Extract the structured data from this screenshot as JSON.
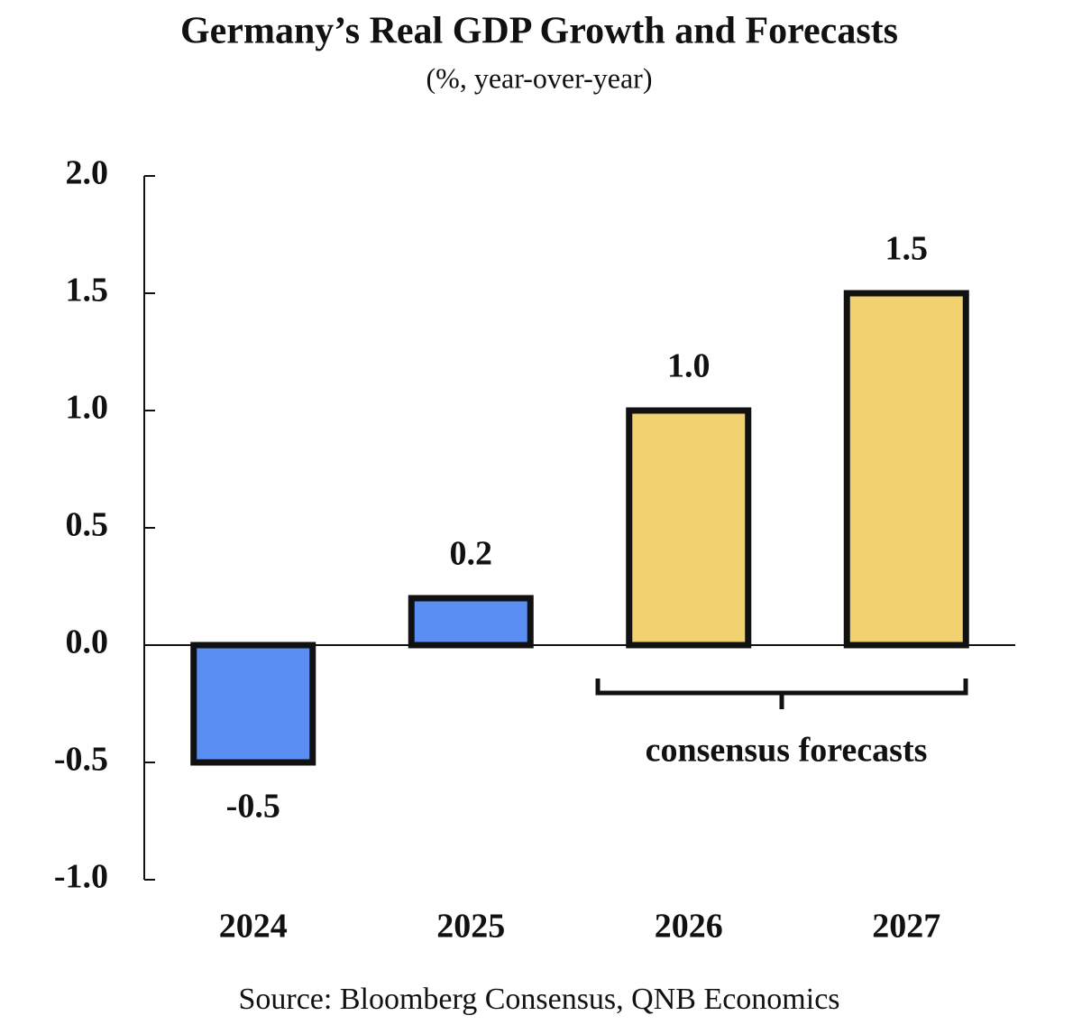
{
  "chart_data": {
    "type": "bar",
    "title": "Germany’s Real GDP Growth and Forecasts",
    "subtitle": "(%, year-over-year)",
    "categories": [
      "2024",
      "2025",
      "2026",
      "2027"
    ],
    "values": [
      -0.5,
      0.2,
      1.0,
      1.5
    ],
    "value_labels": [
      "-0.5",
      "0.2",
      "1.0",
      "1.5"
    ],
    "colors": [
      "#5b8ef2",
      "#5b8ef2",
      "#f1d170",
      "#f1d170"
    ],
    "ylim": [
      -1.0,
      2.0
    ],
    "yticks": [
      {
        "value": -1.0,
        "label": "-1.0"
      },
      -0.5,
      {
        "value": 0.0,
        "label": "0.0"
      },
      0.5,
      {
        "value": 1.0,
        "label": "1.0"
      },
      1.5,
      {
        "value": 2.0,
        "label": "2.0"
      }
    ],
    "annotation": "consensus forecasts",
    "source": "Source: Bloomberg Consensus, QNB Economics"
  }
}
